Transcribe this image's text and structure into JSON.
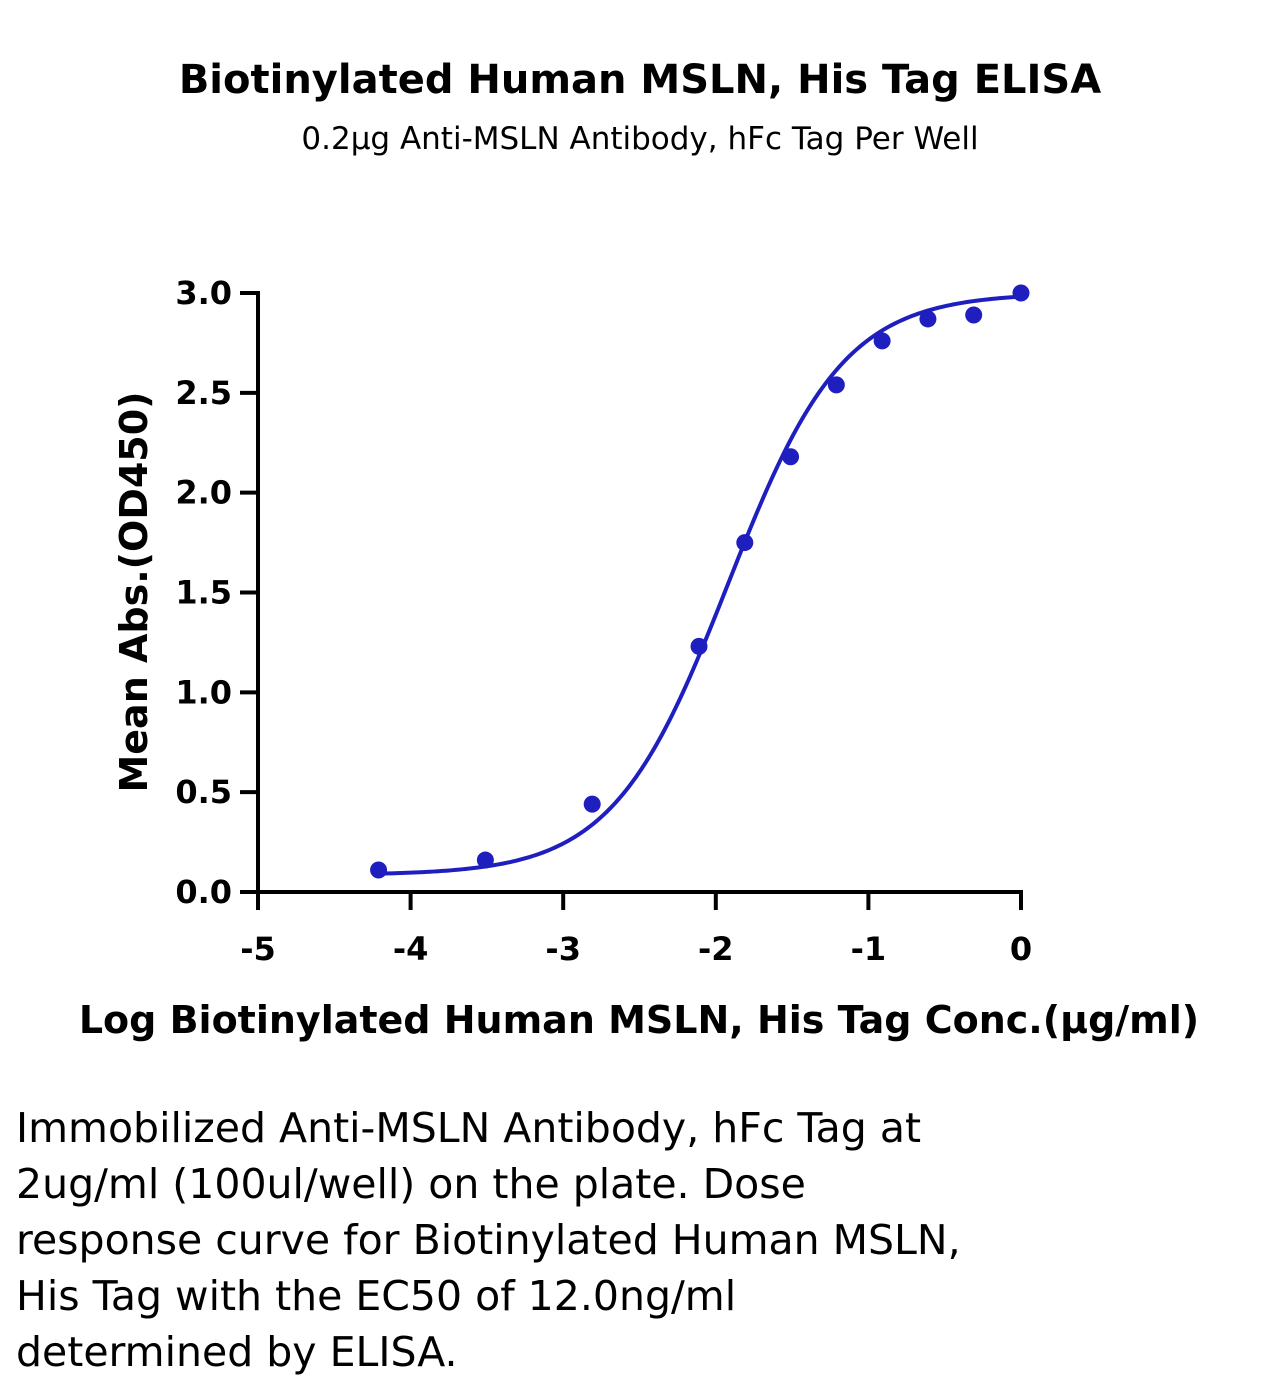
{
  "chart_data": {
    "type": "scatter",
    "title": "Biotinylated Human MSLN, His Tag ELISA",
    "subtitle": "0.2μg Anti-MSLN Antibody, hFc Tag Per Well",
    "xlabel": "Log Biotinylated Human MSLN, His Tag Conc.(μg/ml)",
    "ylabel": "Mean Abs.(OD450)",
    "xlim": [
      -5,
      0
    ],
    "ylim": [
      0,
      3.0
    ],
    "x_ticks": [
      -5,
      -4,
      -3,
      -2,
      -1,
      0
    ],
    "x_tick_labels": [
      "-5",
      "-4",
      "-3",
      "-2",
      "-1",
      "0"
    ],
    "y_ticks": [
      0,
      0.5,
      1.0,
      1.5,
      2.0,
      2.5,
      3.0
    ],
    "y_tick_labels": [
      "0.0",
      "0.5",
      "1.0",
      "1.5",
      "2.0",
      "2.5",
      "3.0"
    ],
    "grid": false,
    "series": [
      {
        "color": "#1f1fbf",
        "x": [
          -4.21,
          -3.51,
          -2.81,
          -2.11,
          -1.81,
          -1.51,
          -1.21,
          -0.91,
          -0.61,
          -0.31,
          0.0
        ],
        "y": [
          0.11,
          0.16,
          0.44,
          1.23,
          1.75,
          2.18,
          2.54,
          2.76,
          2.87,
          2.89,
          3.0
        ],
        "fit": "4PL",
        "fit_params": {
          "bottom": 0.085,
          "top": 3.0,
          "log_ec50": -1.92,
          "hill": 1.15
        }
      }
    ]
  },
  "caption": {
    "lines": [
      "Immobilized Anti-MSLN Antibody, hFc Tag at",
      "2ug/ml (100ul/well) on the plate. Dose",
      "response curve for Biotinylated Human MSLN,",
      "His Tag with the EC50 of 12.0ng/ml",
      "determined by ELISA."
    ]
  }
}
